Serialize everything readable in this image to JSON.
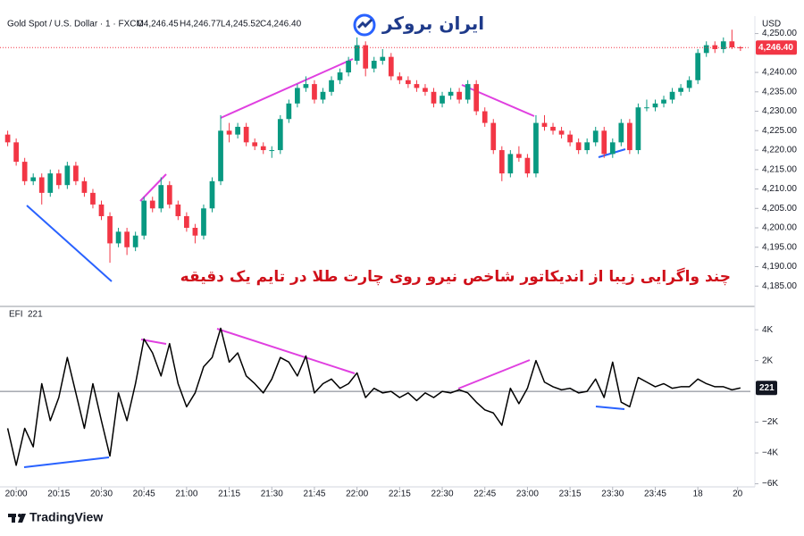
{
  "brand": {
    "logo": "ایران بروکر",
    "footer": "TradingView"
  },
  "chart_data": [
    {
      "type": "candlestick",
      "title": "چند واگرایی زیبا از اندیکاتور شاخص نیرو روی چارت طلا در تایم یک دقیقه",
      "subtitle": "Gold Spot / U.S. Dollar · 1 · FXCM",
      "legend_values": [
        "O4,246.45",
        "H4,246.77",
        "L4,245.52",
        "C4,246.40"
      ],
      "y_unit": "USD",
      "last_price_label": "4,246.40",
      "up_color": "#089981",
      "down_color": "#f23645",
      "x": [
        -3,
        0,
        3,
        6,
        9,
        12,
        15,
        18,
        21,
        24,
        27,
        30,
        33,
        36,
        39,
        42,
        45,
        48,
        51,
        54,
        57,
        60,
        63,
        66,
        69,
        72,
        75,
        78,
        81,
        84,
        87,
        90,
        93,
        96,
        99,
        102,
        105,
        108,
        111,
        114,
        117,
        120,
        123,
        126,
        129,
        132,
        135,
        138,
        141,
        144,
        147,
        150,
        153,
        156,
        159,
        162,
        165,
        168,
        171,
        174,
        177,
        180,
        183,
        186,
        189,
        192,
        195,
        198,
        201,
        204,
        207,
        210,
        213,
        216,
        219,
        222,
        225,
        228,
        231,
        234,
        237,
        240,
        243,
        246,
        249,
        252,
        255
      ],
      "xlim": [
        -5.7,
        258.5
      ],
      "ylim": [
        4180,
        4254.5
      ],
      "yticks": [
        {
          "value": 4250,
          "label": "4,250.00"
        },
        {
          "value": 4240,
          "label": "4,240.00"
        },
        {
          "value": 4235,
          "label": "4,235.00"
        },
        {
          "value": 4230,
          "label": "4,230.00"
        },
        {
          "value": 4225,
          "label": "4,225.00"
        },
        {
          "value": 4220,
          "label": "4,220.00"
        },
        {
          "value": 4215,
          "label": "4,215.00"
        },
        {
          "value": 4210,
          "label": "4,210.00"
        },
        {
          "value": 4205,
          "label": "4,205.00"
        },
        {
          "value": 4200,
          "label": "4,200.00"
        },
        {
          "value": 4195,
          "label": "4,195.00"
        },
        {
          "value": 4190,
          "label": "4,190.00"
        },
        {
          "value": 4185,
          "label": "4,185.00"
        }
      ],
      "series": [
        {
          "name": "Gold Spot / U.S. Dollar",
          "values": [
            [
              4224,
              4225,
              4221,
              4222
            ],
            [
              4222,
              4223,
              4216,
              4217
            ],
            [
              4217,
              4218,
              4211,
              4212
            ],
            [
              4212,
              4214,
              4211,
              4213
            ],
            [
              4213,
              4214,
              4206,
              4209
            ],
            [
              4209,
              4215,
              4208,
              4214
            ],
            [
              4214,
              4215,
              4210,
              4211
            ],
            [
              4211,
              4217,
              4210,
              4216
            ],
            [
              4216,
              4217,
              4211,
              4212
            ],
            [
              4212,
              4213,
              4208,
              4209
            ],
            [
              4209,
              4210,
              4205,
              4206
            ],
            [
              4206,
              4207,
              4202,
              4203
            ],
            [
              4203,
              4204,
              4191,
              4196
            ],
            [
              4196,
              4200,
              4195,
              4199
            ],
            [
              4199,
              4200,
              4193,
              4195
            ],
            [
              4195,
              4199,
              4194,
              4198
            ],
            [
              4198,
              4208,
              4197,
              4207
            ],
            [
              4207,
              4208,
              4204,
              4205
            ],
            [
              4205,
              4213,
              4204,
              4211
            ],
            [
              4211,
              4212,
              4205,
              4206
            ],
            [
              4206,
              4207,
              4202,
              4203
            ],
            [
              4203,
              4204,
              4199,
              4200
            ],
            [
              4200,
              4201,
              4196,
              4198
            ],
            [
              4198,
              4206,
              4197,
              4205
            ],
            [
              4205,
              4213,
              4204,
              4212
            ],
            [
              4212,
              4229,
              4211,
              4225
            ],
            [
              4225,
              4227,
              4222,
              4224
            ],
            [
              4224,
              4227,
              4223,
              4226
            ],
            [
              4226,
              4227,
              4221,
              4222
            ],
            [
              4222,
              4223,
              4220,
              4221
            ],
            [
              4221,
              4222,
              4219,
              4220
            ],
            [
              4220,
              4221,
              4218,
              4220
            ],
            [
              4220,
              4229,
              4219,
              4228
            ],
            [
              4228,
              4233,
              4227,
              4232
            ],
            [
              4232,
              4237,
              4231,
              4236
            ],
            [
              4236,
              4239,
              4235,
              4237
            ],
            [
              4237,
              4238,
              4232,
              4233
            ],
            [
              4233,
              4236,
              4232,
              4235
            ],
            [
              4235,
              4239,
              4234,
              4238
            ],
            [
              4238,
              4241,
              4237,
              4240
            ],
            [
              4240,
              4244,
              4239,
              4243
            ],
            [
              4243,
              4249,
              4242,
              4247
            ],
            [
              4247,
              4248,
              4239,
              4241
            ],
            [
              4241,
              4244,
              4240,
              4243
            ],
            [
              4243,
              4246,
              4242,
              4244
            ],
            [
              4244,
              4245,
              4238,
              4239
            ],
            [
              4239,
              4240,
              4237,
              4238
            ],
            [
              4238,
              4239,
              4236,
              4237
            ],
            [
              4237,
              4238,
              4235,
              4236
            ],
            [
              4236,
              4237,
              4234,
              4235
            ],
            [
              4235,
              4236,
              4231,
              4232
            ],
            [
              4232,
              4235,
              4231,
              4234
            ],
            [
              4234,
              4236,
              4233,
              4235
            ],
            [
              4235,
              4236,
              4232,
              4233
            ],
            [
              4233,
              4238,
              4232,
              4237
            ],
            [
              4237,
              4238,
              4229,
              4230
            ],
            [
              4230,
              4231,
              4226,
              4227
            ],
            [
              4227,
              4228,
              4219,
              4220
            ],
            [
              4220,
              4221,
              4212,
              4214
            ],
            [
              4214,
              4220,
              4213,
              4219
            ],
            [
              4219,
              4221,
              4217,
              4218
            ],
            [
              4218,
              4219,
              4213,
              4214
            ],
            [
              4214,
              4229,
              4213,
              4227
            ],
            [
              4227,
              4229,
              4225,
              4226
            ],
            [
              4226,
              4227,
              4224,
              4225
            ],
            [
              4225,
              4226,
              4223,
              4224
            ],
            [
              4224,
              4225,
              4221,
              4222
            ],
            [
              4222,
              4223,
              4219,
              4220
            ],
            [
              4220,
              4223,
              4219,
              4222
            ],
            [
              4222,
              4226,
              4221,
              4225
            ],
            [
              4225,
              4226,
              4218,
              4219
            ],
            [
              4219,
              4223,
              4218,
              4222
            ],
            [
              4222,
              4228,
              4221,
              4227
            ],
            [
              4227,
              4228,
              4219,
              4220
            ],
            [
              4220,
              4232,
              4219,
              4231
            ],
            [
              4231,
              4233,
              4230,
              4231
            ],
            [
              4231,
              4233,
              4230,
              4232
            ],
            [
              4232,
              4234,
              4231,
              4233
            ],
            [
              4233,
              4236,
              4232,
              4235
            ],
            [
              4235,
              4237,
              4234,
              4236
            ],
            [
              4236,
              4239,
              4235,
              4238
            ],
            [
              4238,
              4246,
              4237,
              4245
            ],
            [
              4245,
              4248,
              4244,
              4247
            ],
            [
              4247,
              4248,
              4245,
              4246
            ],
            [
              4246,
              4249,
              4245,
              4248
            ],
            [
              4248,
              4251,
              4246,
              4246.45
            ],
            [
              4246.45,
              4246.77,
              4245.52,
              4246.4
            ]
          ]
        }
      ]
    },
    {
      "type": "line",
      "x": [
        -3,
        0,
        3,
        6,
        9,
        12,
        15,
        18,
        21,
        24,
        27,
        30,
        33,
        36,
        39,
        42,
        45,
        48,
        51,
        54,
        57,
        60,
        63,
        66,
        69,
        72,
        75,
        78,
        81,
        84,
        87,
        90,
        93,
        96,
        99,
        102,
        105,
        108,
        111,
        114,
        117,
        120,
        123,
        126,
        129,
        132,
        135,
        138,
        141,
        144,
        147,
        150,
        153,
        156,
        159,
        162,
        165,
        168,
        171,
        174,
        177,
        180,
        183,
        186,
        189,
        192,
        195,
        198,
        201,
        204,
        207,
        210,
        213,
        216,
        219,
        222,
        225,
        228,
        231,
        234,
        237,
        240,
        243,
        246,
        249,
        252,
        255
      ],
      "xlim": [
        -5.7,
        258.5
      ],
      "xticks": [
        {
          "value": 0,
          "label": "20:00"
        },
        {
          "value": 15,
          "label": "20:15"
        },
        {
          "value": 30,
          "label": "20:30"
        },
        {
          "value": 45,
          "label": "20:45"
        },
        {
          "value": 60,
          "label": "21:00"
        },
        {
          "value": 75,
          "label": "21:15"
        },
        {
          "value": 90,
          "label": "21:30"
        },
        {
          "value": 105,
          "label": "21:45"
        },
        {
          "value": 120,
          "label": "22:00"
        },
        {
          "value": 135,
          "label": "22:15"
        },
        {
          "value": 150,
          "label": "22:30"
        },
        {
          "value": 165,
          "label": "22:45"
        },
        {
          "value": 180,
          "label": "23:00"
        },
        {
          "value": 195,
          "label": "23:15"
        },
        {
          "value": 210,
          "label": "23:30"
        },
        {
          "value": 225,
          "label": "23:45"
        },
        {
          "value": 240,
          "label": "18"
        },
        {
          "value": 254,
          "label": "20"
        }
      ],
      "ylim": [
        -6200,
        5400
      ],
      "yticks": [
        {
          "value": 4000,
          "label": "4K"
        },
        {
          "value": 2000,
          "label": "2K"
        },
        {
          "value": -2000,
          "label": "−2K"
        },
        {
          "value": -4000,
          "label": "−4K"
        },
        {
          "value": -6000,
          "label": "−6K"
        }
      ],
      "zero_line": true,
      "series": [
        {
          "name": "EFI",
          "color": "#000000",
          "values": [
            -2400,
            -4800,
            -2400,
            -3600,
            500,
            -1900,
            -400,
            2200,
            -100,
            -2400,
            500,
            -1900,
            -4200,
            -100,
            -1900,
            500,
            3400,
            2500,
            1000,
            3100,
            500,
            -1000,
            -100,
            1600,
            2200,
            4100,
            1900,
            2500,
            1000,
            500,
            -100,
            800,
            2200,
            1900,
            1000,
            2300,
            -100,
            500,
            800,
            200,
            500,
            1200,
            -400,
            200,
            -100,
            0,
            -400,
            -100,
            -600,
            -100,
            -400,
            0,
            -100,
            100,
            -100,
            -700,
            -1200,
            -1400,
            -2200,
            200,
            -800,
            200,
            2000,
            600,
            300,
            100,
            200,
            -100,
            0,
            800,
            -400,
            1900,
            -700,
            -1000,
            900,
            600,
            300,
            500,
            200,
            300,
            300,
            800,
            500,
            300,
            300,
            100,
            221
          ]
        }
      ]
    }
  ]
}
